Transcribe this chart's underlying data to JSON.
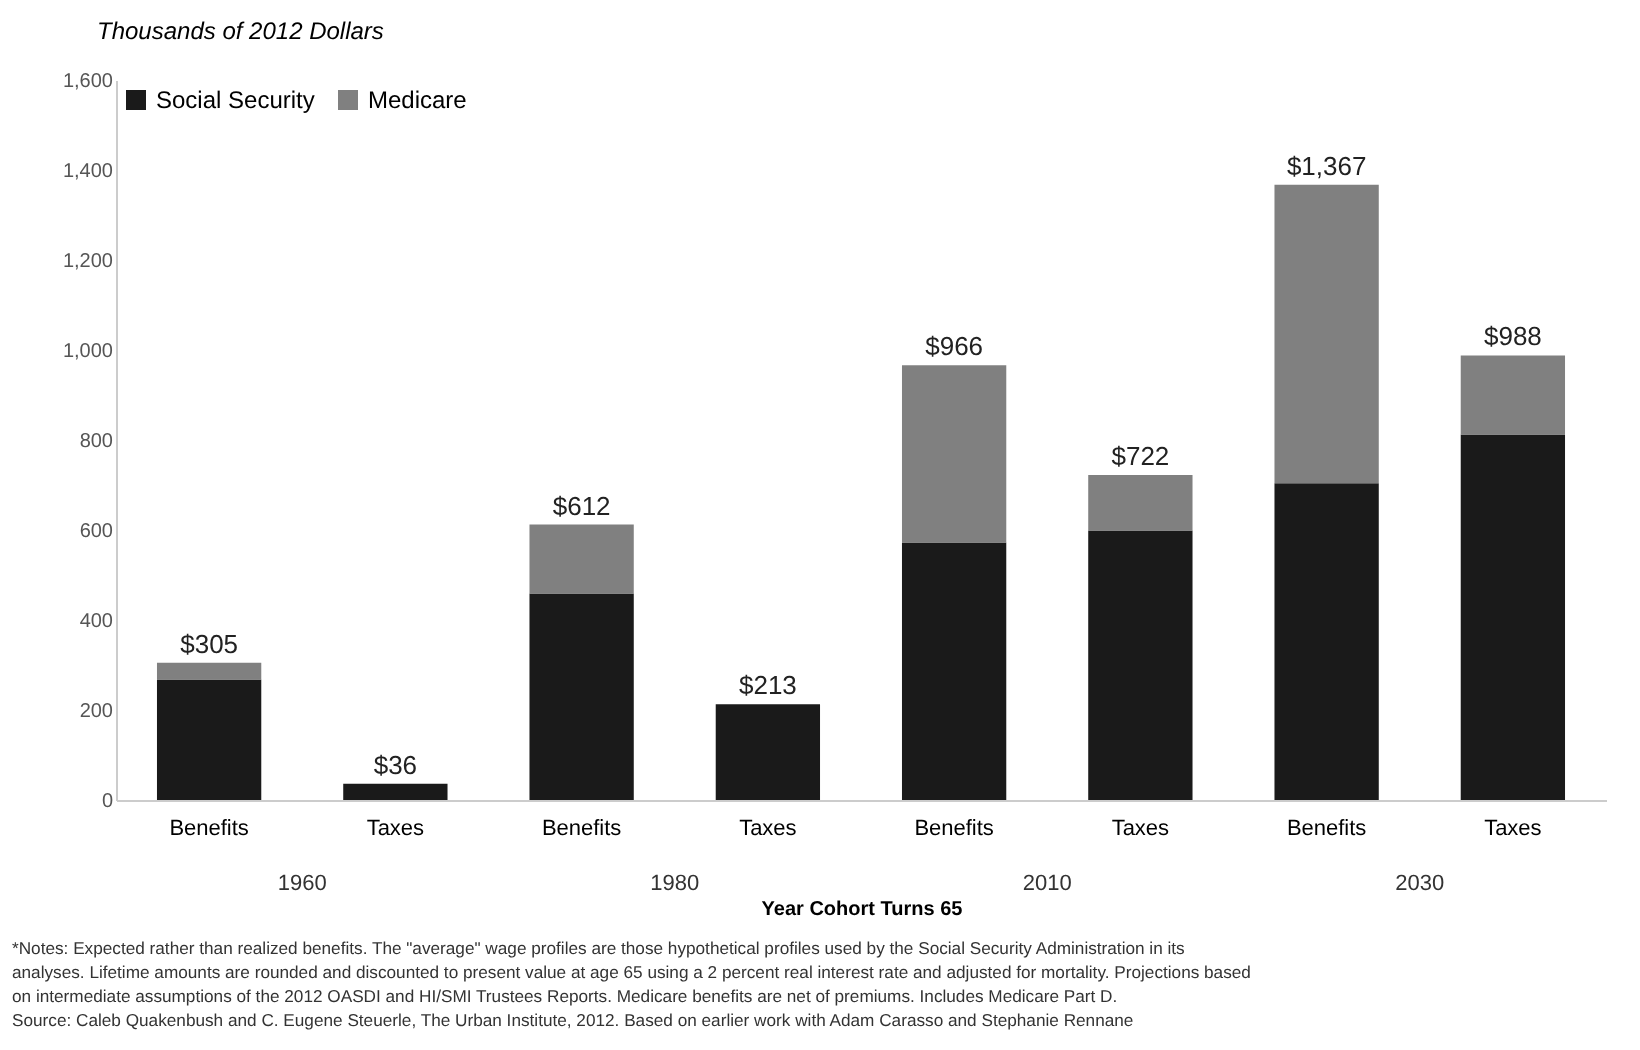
{
  "chart_data": {
    "type": "bar",
    "stacked": true,
    "ylabel": "Thousands of 2012 Dollars",
    "xlabel": "Year Cohort Turns 65",
    "categories": [
      "Benefits",
      "Taxes",
      "Benefits",
      "Taxes",
      "Benefits",
      "Taxes",
      "Benefits",
      "Taxes"
    ],
    "series": [
      {
        "name": "Social Security",
        "color": "#1a1a1a",
        "values": [
          268,
          36,
          459,
          213,
          572,
          599,
          704,
          812
        ]
      },
      {
        "name": "Medicare",
        "color": "#808080",
        "values": [
          37,
          0,
          153,
          0,
          394,
          123,
          663,
          176
        ]
      }
    ],
    "totals": [
      "$305",
      "$36",
      "$612",
      "$213",
      "$966",
      "$722",
      "$1,367",
      "$988"
    ],
    "ylim": [
      0,
      1600
    ],
    "yticks": [
      {
        "value": 0,
        "label": "0"
      },
      {
        "value": 200,
        "label": "200"
      },
      {
        "value": 400,
        "label": "400"
      },
      {
        "value": 600,
        "label": "600"
      },
      {
        "value": 800,
        "label": "800"
      },
      {
        "value": 1000,
        "label": "1,000"
      },
      {
        "value": 1200,
        "label": "1,200"
      },
      {
        "value": 1400,
        "label": "1,400"
      },
      {
        "value": 1600,
        "label": "1,600"
      }
    ],
    "grid": false,
    "legend": "top left",
    "annotations": [
      "1960",
      "1980",
      "2010",
      "2030",
      "*Notes: Expected rather than realized benefits.  The \"average\" wage profiles are those hypothetical profiles used by the Social Security Administration in its",
      "analyses. Lifetime amounts are rounded and discounted to present value at age 65 using a 2 percent real interest rate and adjusted for mortality. Projections based",
      "on intermediate assumptions of the 2012 OASDI and HI/SMI Trustees Reports. Medicare benefits are net of premiums. Includes Medicare Part D.",
      "Source: Caleb Quakenbush and C. Eugene Steuerle, The Urban Institute, 2012. Based on earlier work with Adam Carasso and Stephanie Rennane"
    ]
  }
}
